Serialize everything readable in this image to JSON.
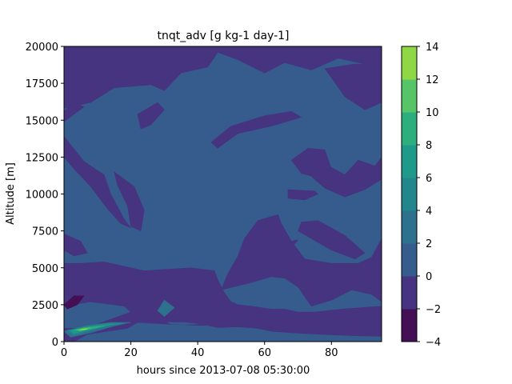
{
  "chart_data": {
    "type": "heatmap",
    "title": "tnqt_adv [g kg-1 day-1]",
    "xlabel": "hours since 2013-07-08 05:30:00",
    "ylabel": "Altitude [m]",
    "xlim": [
      0,
      95
    ],
    "ylim": [
      0,
      20000
    ],
    "xticks": [
      "0",
      "20",
      "40",
      "60",
      "80"
    ],
    "xtick_values": [
      0,
      20,
      40,
      60,
      80
    ],
    "yticks": [
      "0",
      "2500",
      "5000",
      "7500",
      "10000",
      "12500",
      "15000",
      "17500",
      "20000"
    ],
    "ytick_values": [
      0,
      2500,
      5000,
      7500,
      10000,
      12500,
      15000,
      17500,
      20000
    ],
    "colorbar": {
      "levels": [
        -4,
        -2,
        0,
        2,
        4,
        6,
        8,
        10,
        12,
        14
      ],
      "tick_labels": [
        "−4",
        "−2",
        "0",
        "2",
        "4",
        "6",
        "8",
        "10",
        "12",
        "14"
      ],
      "colors": [
        "#440f54",
        "#463480",
        "#365c8d",
        "#2d718e",
        "#22868d",
        "#1f998a",
        "#2cae7f",
        "#55c567",
        "#8fd744",
        "#d0e01c"
      ]
    },
    "background_level": "0 to 2",
    "regions": [
      {
        "level": "-2 to 0",
        "points": [
          [
            0,
            15800
          ],
          [
            8,
            16200
          ],
          [
            15,
            17200
          ],
          [
            26,
            17400
          ],
          [
            30,
            17000
          ],
          [
            35,
            18200
          ],
          [
            43,
            18600
          ],
          [
            46,
            19600
          ],
          [
            52,
            19100
          ],
          [
            60,
            18200
          ],
          [
            66,
            18900
          ],
          [
            74,
            18400
          ],
          [
            82,
            19200
          ],
          [
            90,
            18800
          ],
          [
            95,
            18600
          ],
          [
            95,
            20000
          ],
          [
            0,
            20000
          ]
        ]
      },
      {
        "level": "-2 to 0",
        "points": [
          [
            78,
            18500
          ],
          [
            84,
            16600
          ],
          [
            90,
            15700
          ],
          [
            95,
            16200
          ],
          [
            95,
            18800
          ],
          [
            87,
            18800
          ]
        ]
      },
      {
        "level": "-2 to 0",
        "points": [
          [
            0,
            14900
          ],
          [
            3,
            15400
          ],
          [
            6,
            15900
          ],
          [
            3,
            16200
          ],
          [
            0,
            15600
          ]
        ]
      },
      {
        "level": "-2 to 0",
        "points": [
          [
            22,
            15400
          ],
          [
            28,
            16200
          ],
          [
            30,
            15700
          ],
          [
            26,
            14700
          ],
          [
            23,
            14400
          ]
        ]
      },
      {
        "level": "-2 to 0",
        "points": [
          [
            44,
            13500
          ],
          [
            50,
            14600
          ],
          [
            60,
            15300
          ],
          [
            68,
            15600
          ],
          [
            71,
            15200
          ],
          [
            62,
            14600
          ],
          [
            52,
            14100
          ],
          [
            46,
            13100
          ]
        ]
      },
      {
        "level": "-2 to 0",
        "points": [
          [
            0,
            13900
          ],
          [
            6,
            12200
          ],
          [
            12,
            11300
          ],
          [
            14,
            10000
          ],
          [
            18,
            8300
          ],
          [
            20,
            7700
          ],
          [
            17,
            8000
          ],
          [
            13,
            9000
          ],
          [
            8,
            10500
          ],
          [
            3,
            11700
          ],
          [
            0,
            12500
          ]
        ]
      },
      {
        "level": "-2 to 0",
        "points": [
          [
            0,
            7300
          ],
          [
            5,
            6800
          ],
          [
            7,
            6000
          ],
          [
            3,
            5800
          ],
          [
            0,
            6200
          ]
        ]
      },
      {
        "level": "-2 to 0",
        "points": [
          [
            15,
            11500
          ],
          [
            21,
            10500
          ],
          [
            24,
            8900
          ],
          [
            23,
            7500
          ],
          [
            20,
            7800
          ],
          [
            19,
            9200
          ],
          [
            16,
            10600
          ]
        ]
      },
      {
        "level": "-2 to 0",
        "points": [
          [
            68,
            12300
          ],
          [
            73,
            13100
          ],
          [
            78,
            13000
          ],
          [
            80,
            11700
          ],
          [
            76,
            11100
          ],
          [
            71,
            11400
          ]
        ]
      },
      {
        "level": "-2 to 0",
        "points": [
          [
            67,
            10300
          ],
          [
            75,
            10200
          ],
          [
            76,
            10000
          ],
          [
            72,
            9600
          ],
          [
            67,
            9700
          ]
        ]
      },
      {
        "level": "-2 to 0",
        "points": [
          [
            80,
            11800
          ],
          [
            84,
            11300
          ],
          [
            88,
            12300
          ],
          [
            93,
            11900
          ],
          [
            95,
            12500
          ],
          [
            95,
            7000
          ],
          [
            92,
            5700
          ],
          [
            88,
            5300
          ],
          [
            80,
            5300
          ],
          [
            72,
            5600
          ],
          [
            68,
            6800
          ],
          [
            65,
            8000
          ],
          [
            64,
            8600
          ],
          [
            58,
            8200
          ],
          [
            54,
            7000
          ],
          [
            52,
            5800
          ],
          [
            49,
            4600
          ],
          [
            47,
            3500
          ],
          [
            56,
            4000
          ],
          [
            62,
            4400
          ],
          [
            66,
            4300
          ],
          [
            70,
            3700
          ],
          [
            74,
            2400
          ],
          [
            80,
            2800
          ],
          [
            86,
            3500
          ],
          [
            92,
            3200
          ],
          [
            95,
            2700
          ],
          [
            95,
            2400
          ],
          [
            89,
            2300
          ],
          [
            83,
            2200
          ],
          [
            75,
            2000
          ],
          [
            70,
            2000
          ],
          [
            66,
            2200
          ],
          [
            62,
            2200
          ],
          [
            56,
            2400
          ],
          [
            52,
            2500
          ],
          [
            50,
            2700
          ],
          [
            48,
            3300
          ],
          [
            46,
            4200
          ],
          [
            45,
            4800
          ],
          [
            38,
            5000
          ],
          [
            24,
            4800
          ],
          [
            12,
            5400
          ],
          [
            5,
            5300
          ],
          [
            0,
            5300
          ],
          [
            0,
            2400
          ],
          [
            8,
            2700
          ],
          [
            18,
            2400
          ],
          [
            20,
            2000
          ],
          [
            15,
            1600
          ],
          [
            10,
            1200
          ],
          [
            4,
            900
          ],
          [
            0,
            900
          ],
          [
            0,
            0
          ],
          [
            3,
            0
          ],
          [
            7,
            500
          ],
          [
            13,
            700
          ],
          [
            19,
            900
          ],
          [
            22,
            1300
          ],
          [
            30,
            1200
          ],
          [
            40,
            1100
          ],
          [
            46,
            1100
          ],
          [
            52,
            1000
          ],
          [
            58,
            900
          ],
          [
            62,
            700
          ],
          [
            68,
            600
          ],
          [
            76,
            500
          ],
          [
            86,
            400
          ],
          [
            95,
            350
          ],
          [
            95,
            5500
          ],
          [
            95,
            11000
          ],
          [
            90,
            10300
          ],
          [
            84,
            9800
          ],
          [
            78,
            10400
          ],
          [
            74,
            11200
          ]
        ]
      },
      {
        "level": "-2 to 0",
        "points": [
          [
            70,
            7500
          ],
          [
            80,
            6200
          ],
          [
            87,
            5600
          ],
          [
            90,
            6000
          ],
          [
            84,
            7200
          ],
          [
            76,
            8200
          ],
          [
            71,
            8100
          ]
        ]
      },
      {
        "level": "-2 to 0",
        "points": [
          [
            56,
            6400
          ],
          [
            64,
            6600
          ],
          [
            70,
            6900
          ],
          [
            66,
            5800
          ],
          [
            59,
            5600
          ]
        ]
      },
      {
        "level": "-4 to -2",
        "points": [
          [
            0,
            2500
          ],
          [
            3,
            3100
          ],
          [
            6,
            3100
          ],
          [
            4,
            2500
          ],
          [
            1,
            2200
          ]
        ]
      },
      {
        "level": "2 to 4",
        "points": [
          [
            28,
            2100
          ],
          [
            30,
            2800
          ],
          [
            33,
            2300
          ],
          [
            30,
            1700
          ]
        ]
      },
      {
        "level": "2 to 4",
        "points": [
          [
            0,
            700
          ],
          [
            7,
            1100
          ],
          [
            14,
            1300
          ],
          [
            20,
            1300
          ],
          [
            15,
            1050
          ],
          [
            8,
            600
          ],
          [
            2,
            300
          ]
        ]
      },
      {
        "level": "4 to 6",
        "points": [
          [
            1,
            750
          ],
          [
            7,
            1050
          ],
          [
            14,
            1250
          ],
          [
            18,
            1250
          ],
          [
            13,
            1050
          ],
          [
            7,
            700
          ],
          [
            3,
            450
          ]
        ]
      },
      {
        "level": "6 to 8",
        "points": [
          [
            2,
            750
          ],
          [
            6,
            950
          ],
          [
            11,
            1100
          ],
          [
            15,
            1200
          ],
          [
            11,
            1000
          ],
          [
            6,
            750
          ],
          [
            3,
            550
          ]
        ]
      },
      {
        "level": "8 to 10",
        "points": [
          [
            3,
            780
          ],
          [
            6,
            930
          ],
          [
            10,
            1030
          ],
          [
            12,
            1060
          ],
          [
            9,
            900
          ],
          [
            5,
            720
          ]
        ]
      },
      {
        "level": "10 to 12",
        "points": [
          [
            4,
            800
          ],
          [
            6,
            880
          ],
          [
            8,
            930
          ],
          [
            6,
            800
          ],
          [
            5,
            740
          ]
        ]
      },
      {
        "level": "12 to 14",
        "points": [
          [
            5,
            820
          ],
          [
            6,
            860
          ],
          [
            7,
            850
          ],
          [
            6,
            800
          ]
        ]
      },
      {
        "level": "0 to 2",
        "points": [
          [
            31,
            1300
          ],
          [
            36,
            1300
          ],
          [
            40,
            1200
          ],
          [
            36,
            1150
          ],
          [
            32,
            1200
          ]
        ]
      },
      {
        "level": "-2 to 0",
        "points": [
          [
            43,
            1100
          ],
          [
            48,
            1300
          ],
          [
            55,
            1300
          ],
          [
            52,
            1000
          ],
          [
            46,
            950
          ]
        ]
      },
      {
        "level": "-2 to 0",
        "points": [
          [
            60,
            1400
          ],
          [
            64,
            1400
          ],
          [
            66,
            1100
          ],
          [
            62,
            1000
          ],
          [
            59,
            1150
          ]
        ]
      }
    ]
  }
}
